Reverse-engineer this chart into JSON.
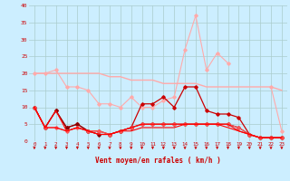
{
  "background_color": "#cceeff",
  "grid_color": "#aacccc",
  "xlim": [
    -0.5,
    23.5
  ],
  "ylim": [
    0,
    40
  ],
  "yticks": [
    0,
    5,
    10,
    15,
    20,
    25,
    30,
    35,
    40
  ],
  "xticks": [
    0,
    1,
    2,
    3,
    4,
    5,
    6,
    7,
    8,
    9,
    10,
    11,
    12,
    13,
    14,
    15,
    16,
    17,
    18,
    19,
    20,
    21,
    22,
    23
  ],
  "xlabel": "Vent moyen/en rafales ( km/h )",
  "lines": [
    {
      "x": [
        0,
        1,
        2,
        3,
        4,
        5,
        6,
        7,
        8,
        9,
        10,
        11,
        12,
        13,
        14,
        15,
        16,
        17,
        18,
        19,
        20,
        21,
        22,
        23
      ],
      "y": [
        20,
        20,
        20,
        20,
        20,
        20,
        20,
        19,
        19,
        18,
        18,
        18,
        17,
        17,
        17,
        17,
        16,
        16,
        16,
        16,
        16,
        16,
        16,
        15
      ],
      "color": "#ffaaaa",
      "lw": 1.0,
      "marker": null,
      "ms": 0
    },
    {
      "x": [
        0,
        1,
        2,
        3,
        4,
        5,
        6,
        7,
        8,
        9,
        10,
        11,
        12,
        13,
        14,
        15,
        16,
        17,
        18,
        19,
        20,
        21,
        22,
        23
      ],
      "y": [
        20,
        20,
        21,
        16,
        16,
        15,
        11,
        11,
        10,
        13,
        10,
        10,
        12,
        13,
        27,
        37,
        21,
        26,
        23,
        null,
        null,
        null,
        16,
        3
      ],
      "color": "#ffaaaa",
      "lw": 0.8,
      "marker": "D",
      "ms": 1.8
    },
    {
      "x": [
        0,
        1,
        2,
        3,
        4,
        5,
        6,
        7,
        8,
        9,
        10,
        11,
        12,
        13,
        14,
        15,
        16,
        17,
        18,
        19,
        20,
        21,
        22,
        23
      ],
      "y": [
        10,
        4,
        9,
        4,
        5,
        3,
        3,
        2,
        3,
        4,
        11,
        11,
        13,
        10,
        16,
        16,
        9,
        8,
        8,
        7,
        2,
        1,
        1,
        1
      ],
      "color": "#cc0000",
      "lw": 0.9,
      "marker": "D",
      "ms": 1.8
    },
    {
      "x": [
        0,
        1,
        2,
        3,
        4,
        5,
        6,
        7,
        8,
        9,
        10,
        11,
        12,
        13,
        14,
        15,
        16,
        17,
        18,
        19,
        20,
        21,
        22,
        23
      ],
      "y": [
        10,
        4,
        9,
        4,
        5,
        3,
        2,
        2,
        3,
        4,
        5,
        5,
        5,
        5,
        5,
        5,
        5,
        5,
        5,
        4,
        2,
        1,
        1,
        1
      ],
      "color": "#880000",
      "lw": 0.8,
      "marker": "D",
      "ms": 1.8
    },
    {
      "x": [
        0,
        1,
        2,
        3,
        4,
        5,
        6,
        7,
        8,
        9,
        10,
        11,
        12,
        13,
        14,
        15,
        16,
        17,
        18,
        19,
        20,
        21,
        22,
        23
      ],
      "y": [
        10,
        4,
        4,
        3,
        4,
        3,
        3,
        2,
        3,
        4,
        5,
        5,
        5,
        5,
        5,
        5,
        5,
        5,
        5,
        4,
        2,
        1,
        1,
        1
      ],
      "color": "#ff5555",
      "lw": 0.8,
      "marker": "D",
      "ms": 1.8
    },
    {
      "x": [
        0,
        1,
        2,
        3,
        4,
        5,
        6,
        7,
        8,
        9,
        10,
        11,
        12,
        13,
        14,
        15,
        16,
        17,
        18,
        19,
        20,
        21,
        22,
        23
      ],
      "y": [
        10,
        4,
        9,
        3,
        4,
        3,
        2,
        2,
        3,
        4,
        5,
        5,
        5,
        5,
        5,
        5,
        5,
        5,
        5,
        3,
        2,
        1,
        1,
        1
      ],
      "color": "#ff0000",
      "lw": 0.8,
      "marker": null,
      "ms": 0
    },
    {
      "x": [
        0,
        1,
        2,
        3,
        4,
        5,
        6,
        7,
        8,
        9,
        10,
        11,
        12,
        13,
        14,
        15,
        16,
        17,
        18,
        19,
        20,
        21,
        22,
        23
      ],
      "y": [
        10,
        4,
        4,
        3,
        4,
        3,
        2,
        2,
        3,
        3,
        4,
        4,
        4,
        4,
        5,
        5,
        5,
        5,
        4,
        3,
        2,
        1,
        1,
        1
      ],
      "color": "#ff0000",
      "lw": 0.8,
      "marker": null,
      "ms": 0
    }
  ],
  "arrow_color": "#cc0000",
  "tick_label_color": "#cc0000",
  "xlabel_color": "#cc0000"
}
